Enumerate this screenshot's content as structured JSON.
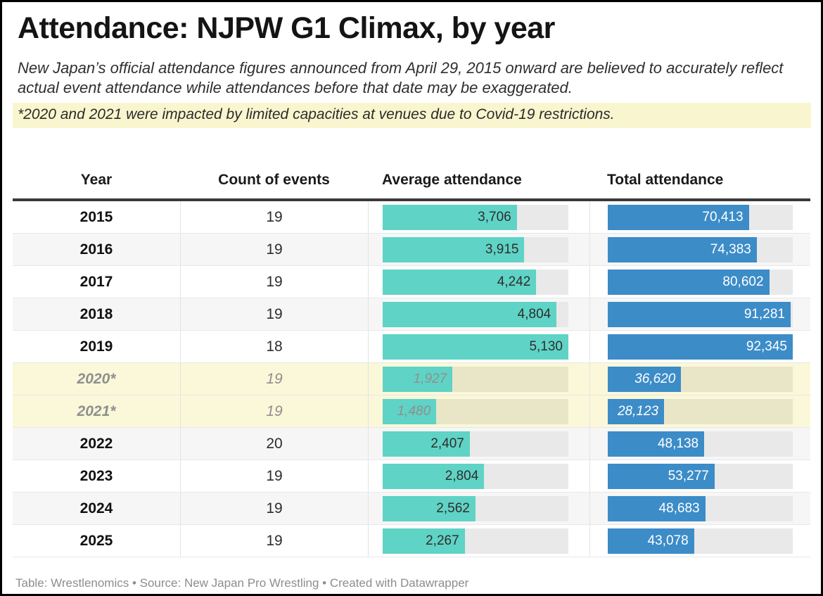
{
  "header": {
    "title": "Attendance: NJPW G1 Climax, by year",
    "description": "New Japan’s official attendance figures announced from April 29, 2015 onward are believed to accurately reflect actual event attendance while attendances before that date may be exaggerated.",
    "note": "*2020 and 2021 were impacted by limited capacities at venues due to Covid-19 restrictions."
  },
  "chart_data": {
    "type": "table",
    "columns": [
      "Year",
      "Count of events",
      "Average attendance",
      "Total attendance"
    ],
    "bar_columns": [
      "Average attendance",
      "Total attendance"
    ],
    "avg_scale_max": 5130,
    "total_scale_max": 92345,
    "rows": [
      {
        "year": "2015",
        "events": "19",
        "avg": 3706,
        "avg_label": "3,706",
        "total": 70413,
        "total_label": "70,413",
        "covid": false
      },
      {
        "year": "2016",
        "events": "19",
        "avg": 3915,
        "avg_label": "3,915",
        "total": 74383,
        "total_label": "74,383",
        "covid": false
      },
      {
        "year": "2017",
        "events": "19",
        "avg": 4242,
        "avg_label": "4,242",
        "total": 80602,
        "total_label": "80,602",
        "covid": false
      },
      {
        "year": "2018",
        "events": "19",
        "avg": 4804,
        "avg_label": "4,804",
        "total": 91281,
        "total_label": "91,281",
        "covid": false
      },
      {
        "year": "2019",
        "events": "18",
        "avg": 5130,
        "avg_label": "5,130",
        "total": 92345,
        "total_label": "92,345",
        "covid": false
      },
      {
        "year": "2020*",
        "events": "19",
        "avg": 1927,
        "avg_label": "1,927",
        "total": 36620,
        "total_label": "36,620",
        "covid": true
      },
      {
        "year": "2021*",
        "events": "19",
        "avg": 1480,
        "avg_label": "1,480",
        "total": 28123,
        "total_label": "28,123",
        "covid": true
      },
      {
        "year": "2022",
        "events": "20",
        "avg": 2407,
        "avg_label": "2,407",
        "total": 48138,
        "total_label": "48,138",
        "covid": false
      },
      {
        "year": "2023",
        "events": "19",
        "avg": 2804,
        "avg_label": "2,804",
        "total": 53277,
        "total_label": "53,277",
        "covid": false
      },
      {
        "year": "2024",
        "events": "19",
        "avg": 2562,
        "avg_label": "2,562",
        "total": 48683,
        "total_label": "48,683",
        "covid": false
      },
      {
        "year": "2025",
        "events": "19",
        "avg": 2267,
        "avg_label": "2,267",
        "total": 43078,
        "total_label": "43,078",
        "covid": false
      }
    ]
  },
  "footer": {
    "credit": "Table: Wrestlenomics • Source: New Japan Pro Wrestling • Created with Datawrapper"
  },
  "colors": {
    "accent_teal": "#5fd3c5",
    "accent_blue": "#3c8cc8",
    "track_gray": "#e9e9e9",
    "track_yellow": "#e9e6c8",
    "row_alt": "#f6f6f6",
    "row_highlight": "#faf8d9",
    "note_highlight": "#f9f6cf",
    "muted_text": "#8f8f8f"
  }
}
